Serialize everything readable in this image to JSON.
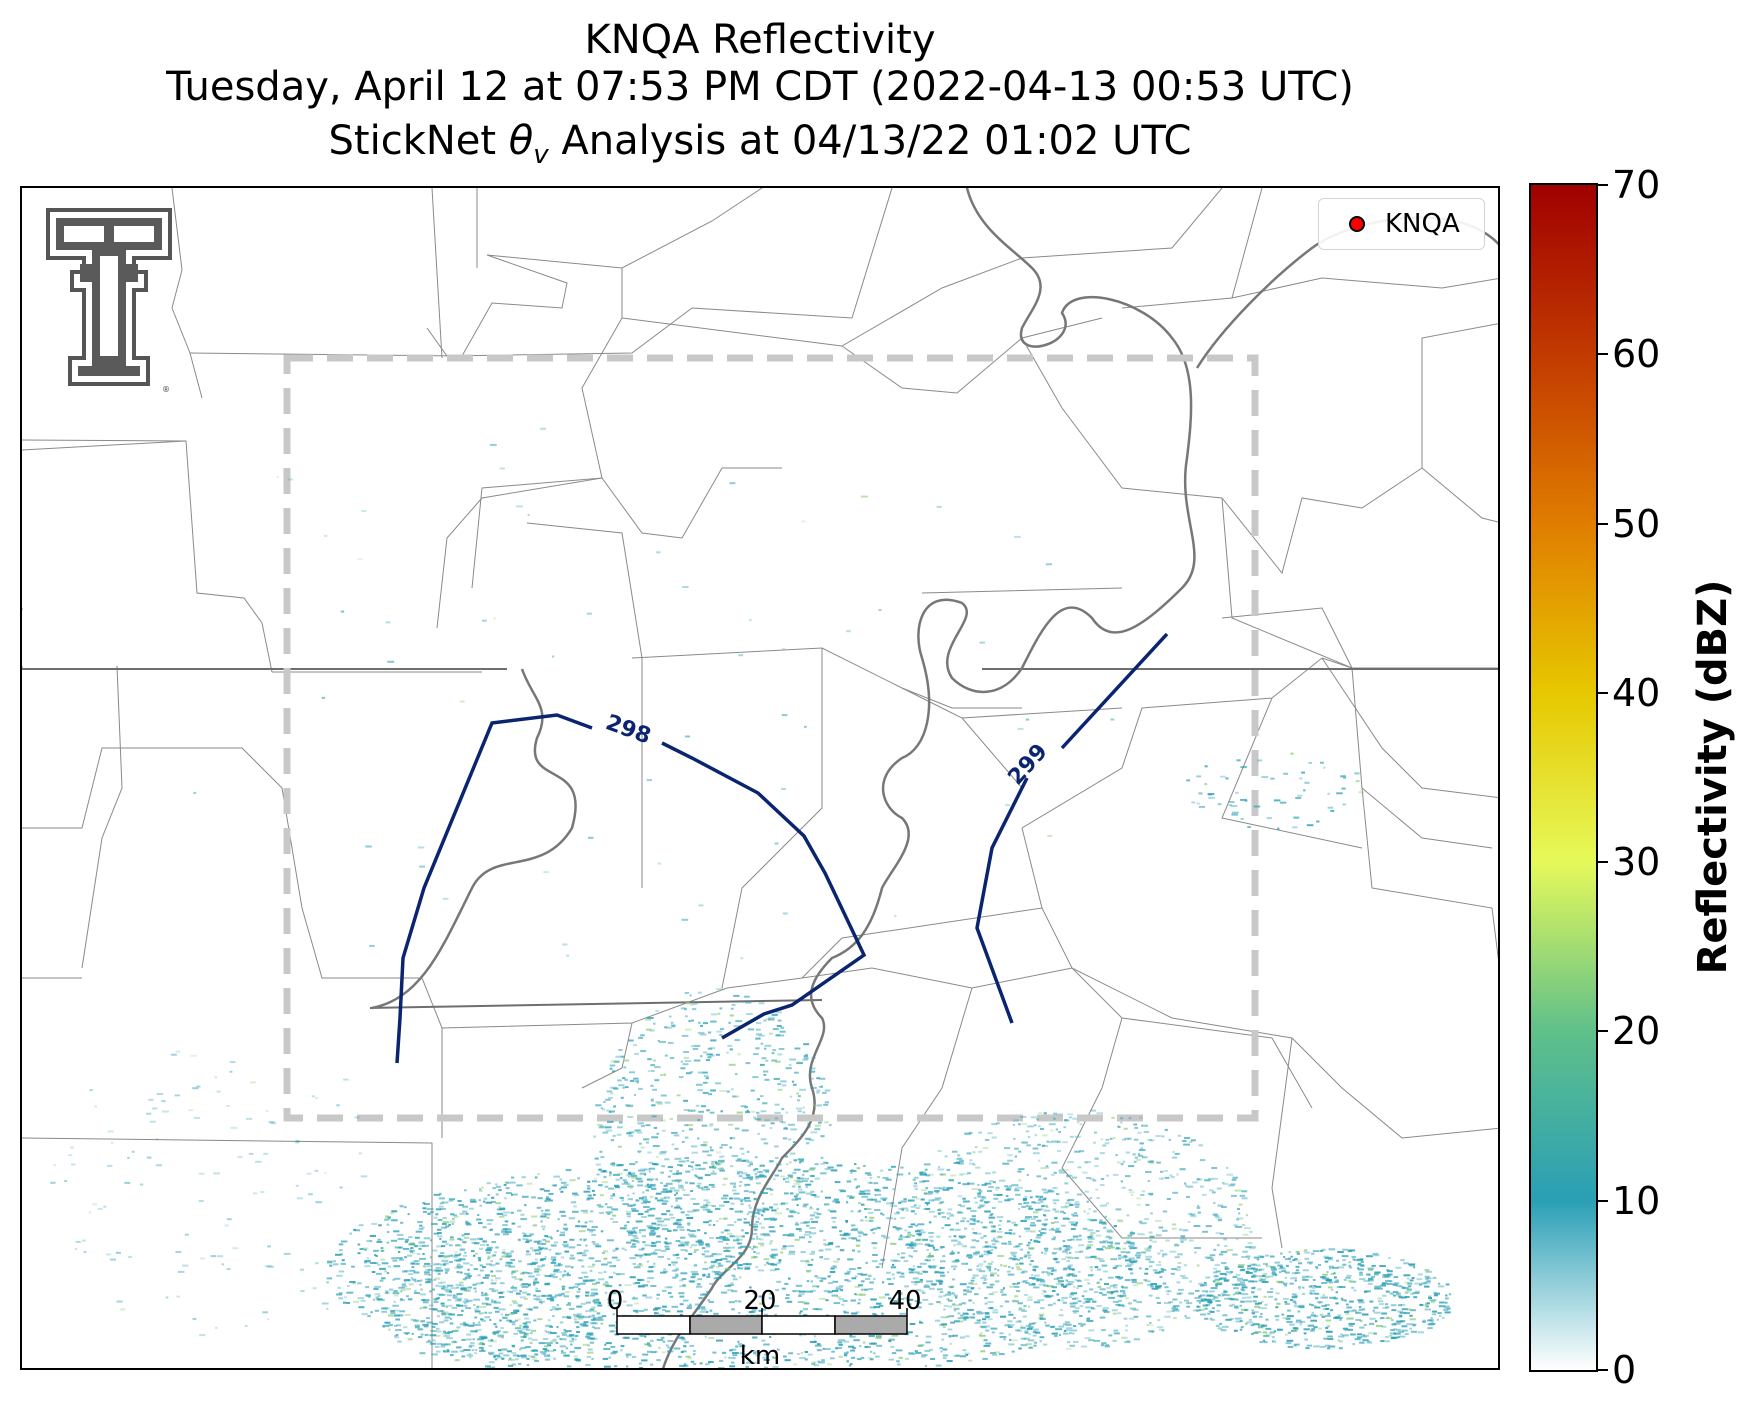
{
  "title": {
    "line1": "KNQA Reflectivity",
    "line2": "Tuesday, April 12 at 07:53 PM CDT (2022-04-13 00:53 UTC)",
    "line3": "StickNet θv Analysis at 04/13/22 01:02 UTC"
  },
  "legend": {
    "label": "KNQA",
    "marker_color": "#ff0000"
  },
  "colorbar": {
    "title": "Reflectivity (dBZ)",
    "ticks": [
      "0",
      "10",
      "20",
      "30",
      "40",
      "50",
      "60",
      "70"
    ],
    "range": [
      0,
      70
    ],
    "colors": [
      "#ffffff",
      "#2a9fb5",
      "#5fc08a",
      "#e6f95a",
      "#e6c800",
      "#e07d00",
      "#c23a00",
      "#a00000"
    ]
  },
  "scalebar": {
    "labels": [
      "0",
      "20",
      "40"
    ],
    "unit": "km"
  },
  "contours": [
    {
      "value": 298,
      "label": "298",
      "color": "#0a2470"
    },
    {
      "value": 299,
      "label": "299",
      "color": "#0a2470"
    }
  ],
  "logo": {
    "icon": "texas-tech-double-t-logo"
  },
  "analysis_box": {
    "style": "dashed",
    "color": "#c8c8c8"
  },
  "radar": {
    "echo_color": "#2a9fb5"
  }
}
